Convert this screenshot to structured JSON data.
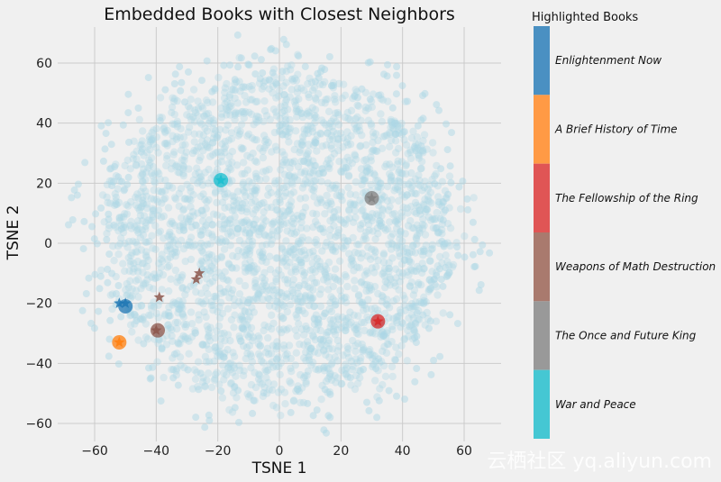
{
  "chart_data": {
    "type": "scatter",
    "title": "Embedded Books with Closest Neighbors",
    "xlabel": "TSNE 1",
    "ylabel": "TSNE 2",
    "xlim": [
      -72,
      72
    ],
    "ylim": [
      -66,
      72
    ],
    "xticks": [
      -60,
      -40,
      -20,
      0,
      20,
      40,
      60
    ],
    "yticks": [
      -60,
      -40,
      -20,
      0,
      20,
      40,
      60
    ],
    "xtick_labels": [
      "−60",
      "−40",
      "−20",
      "0",
      "20",
      "40",
      "60"
    ],
    "ytick_labels": [
      "−60",
      "−40",
      "−20",
      "0",
      "20",
      "40",
      "60"
    ],
    "grid": true,
    "background_points_color": "#add8e6",
    "highlighted_books": [
      {
        "name": "Enlightenment Now",
        "color": "#1f77b4",
        "x": -50,
        "y": -21,
        "neighbors": [
          [
            -50,
            -20
          ],
          [
            -52,
            -20
          ]
        ]
      },
      {
        "name": "A Brief History of Time",
        "color": "#ff7f0e",
        "x": -52,
        "y": -33,
        "neighbors": [
          [
            -52,
            -33
          ]
        ]
      },
      {
        "name": "The Fellowship of the Ring",
        "color": "#d62728",
        "x": 32,
        "y": -26,
        "neighbors": [
          [
            32,
            -26
          ]
        ]
      },
      {
        "name": "Weapons of Math Destruction",
        "color": "#8c564b",
        "x": -39.5,
        "y": -29,
        "neighbors": [
          [
            -40,
            -29
          ],
          [
            -39,
            -18
          ],
          [
            -26,
            -10
          ],
          [
            -27,
            -12
          ]
        ]
      },
      {
        "name": "The Once and Future King",
        "color": "#7f7f7f",
        "x": 30,
        "y": 15,
        "neighbors": [
          [
            30,
            15
          ]
        ]
      },
      {
        "name": "War and Peace",
        "color": "#17becf",
        "x": -19,
        "y": 21,
        "neighbors": [
          [
            -19,
            21
          ]
        ]
      }
    ],
    "colorbar": {
      "title": "Highlighted Books",
      "labels": [
        "Enlightenment Now",
        "A Brief History of Time",
        "The Fellowship of the Ring",
        "Weapons of Math Destruction",
        "The Once and Future King",
        "War and Peace"
      ],
      "colors": [
        "#4a90c2",
        "#ff9a45",
        "#e05555",
        "#a97a6e",
        "#999999",
        "#45c7d3"
      ]
    }
  },
  "watermark": "云栖社区 yq.aliyun.com"
}
